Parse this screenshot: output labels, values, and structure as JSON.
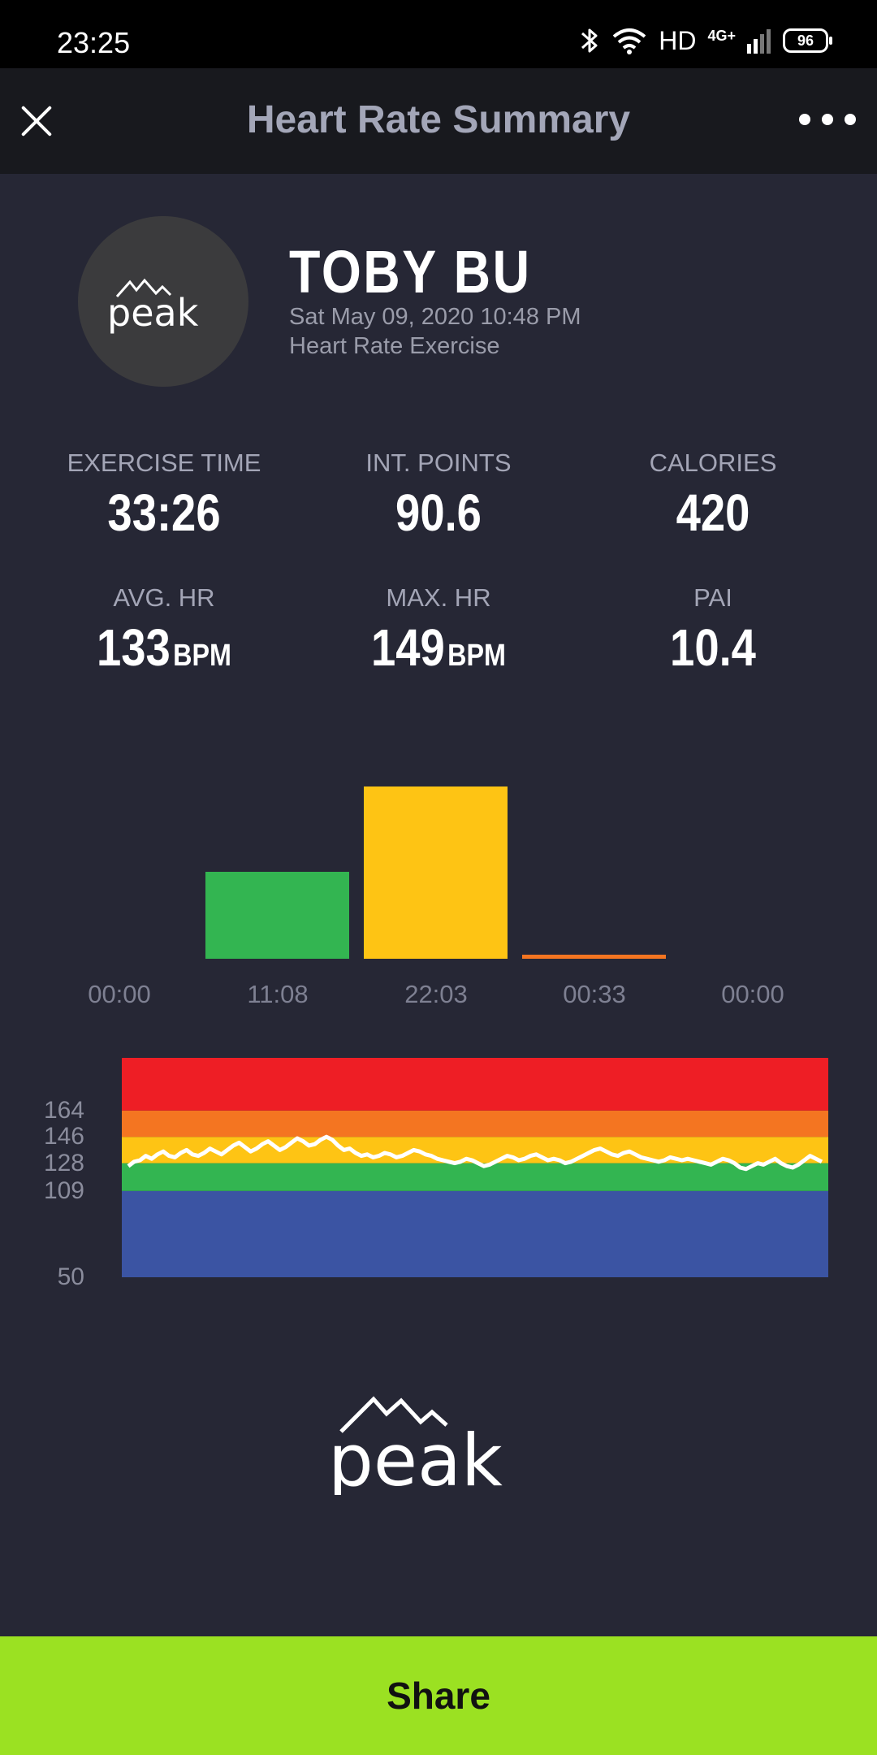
{
  "status": {
    "time": "23:25",
    "network": "HD",
    "net_type": "4G+",
    "battery": "96"
  },
  "header": {
    "title": "Heart Rate Summary"
  },
  "profile": {
    "name": "TOBY BU",
    "datetime": "Sat May 09, 2020 10:48 PM",
    "activity": "Heart Rate Exercise",
    "logo_text": "peak"
  },
  "stats": {
    "exercise_time": {
      "label": "EXERCISE TIME",
      "value": "33:26"
    },
    "int_points": {
      "label": "INT. POINTS",
      "value": "90.6"
    },
    "calories": {
      "label": "CALORIES",
      "value": "420"
    },
    "avg_hr": {
      "label": "AVG. HR",
      "value": "133",
      "unit": "BPM"
    },
    "max_hr": {
      "label": "MAX. HR",
      "value": "149",
      "unit": "BPM"
    },
    "pai": {
      "label": "PAI",
      "value": "10.4"
    }
  },
  "chart_data": [
    {
      "type": "bar",
      "categories": [
        "00:00",
        "11:08",
        "22:03",
        "00:33",
        "00:00"
      ],
      "values": [
        0,
        668,
        1323,
        33,
        0
      ],
      "value_unit": "seconds",
      "colors": [
        "#3b54a3",
        "#33b551",
        "#fec414",
        "#f47521",
        "#ee1e25"
      ]
    },
    {
      "type": "line",
      "y_ticks": [
        50,
        109,
        128,
        146,
        164
      ],
      "ylim": [
        50,
        200
      ],
      "zones": [
        {
          "from": 50,
          "to": 109,
          "color": "#3b54a3"
        },
        {
          "from": 109,
          "to": 128,
          "color": "#33b551"
        },
        {
          "from": 128,
          "to": 146,
          "color": "#fec414"
        },
        {
          "from": 146,
          "to": 164,
          "color": "#f47521"
        },
        {
          "from": 164,
          "to": 200,
          "color": "#ee1e25"
        }
      ],
      "series": [
        {
          "color": "#ffffff",
          "y": [
            126,
            129,
            130,
            133,
            131,
            134,
            136,
            133,
            132,
            135,
            137,
            134,
            133,
            135,
            138,
            136,
            134,
            137,
            140,
            142,
            139,
            136,
            138,
            141,
            143,
            140,
            137,
            139,
            142,
            145,
            143,
            140,
            141,
            144,
            146,
            144,
            140,
            137,
            138,
            135,
            133,
            134,
            132,
            133,
            135,
            134,
            132,
            133,
            135,
            137,
            136,
            134,
            133,
            131,
            130,
            129,
            128,
            129,
            131,
            130,
            128,
            126,
            127,
            129,
            131,
            133,
            132,
            130,
            131,
            133,
            134,
            132,
            130,
            131,
            130,
            128,
            129,
            131,
            133,
            135,
            137,
            138,
            136,
            134,
            133,
            135,
            136,
            134,
            132,
            131,
            130,
            129,
            130,
            132,
            131,
            130,
            131,
            130,
            129,
            128,
            127,
            129,
            131,
            130,
            128,
            125,
            124,
            126,
            128,
            127,
            129,
            131,
            128,
            126,
            125,
            127,
            130,
            133,
            131,
            129
          ]
        }
      ]
    }
  ],
  "actions": {
    "share_label": "Share"
  }
}
